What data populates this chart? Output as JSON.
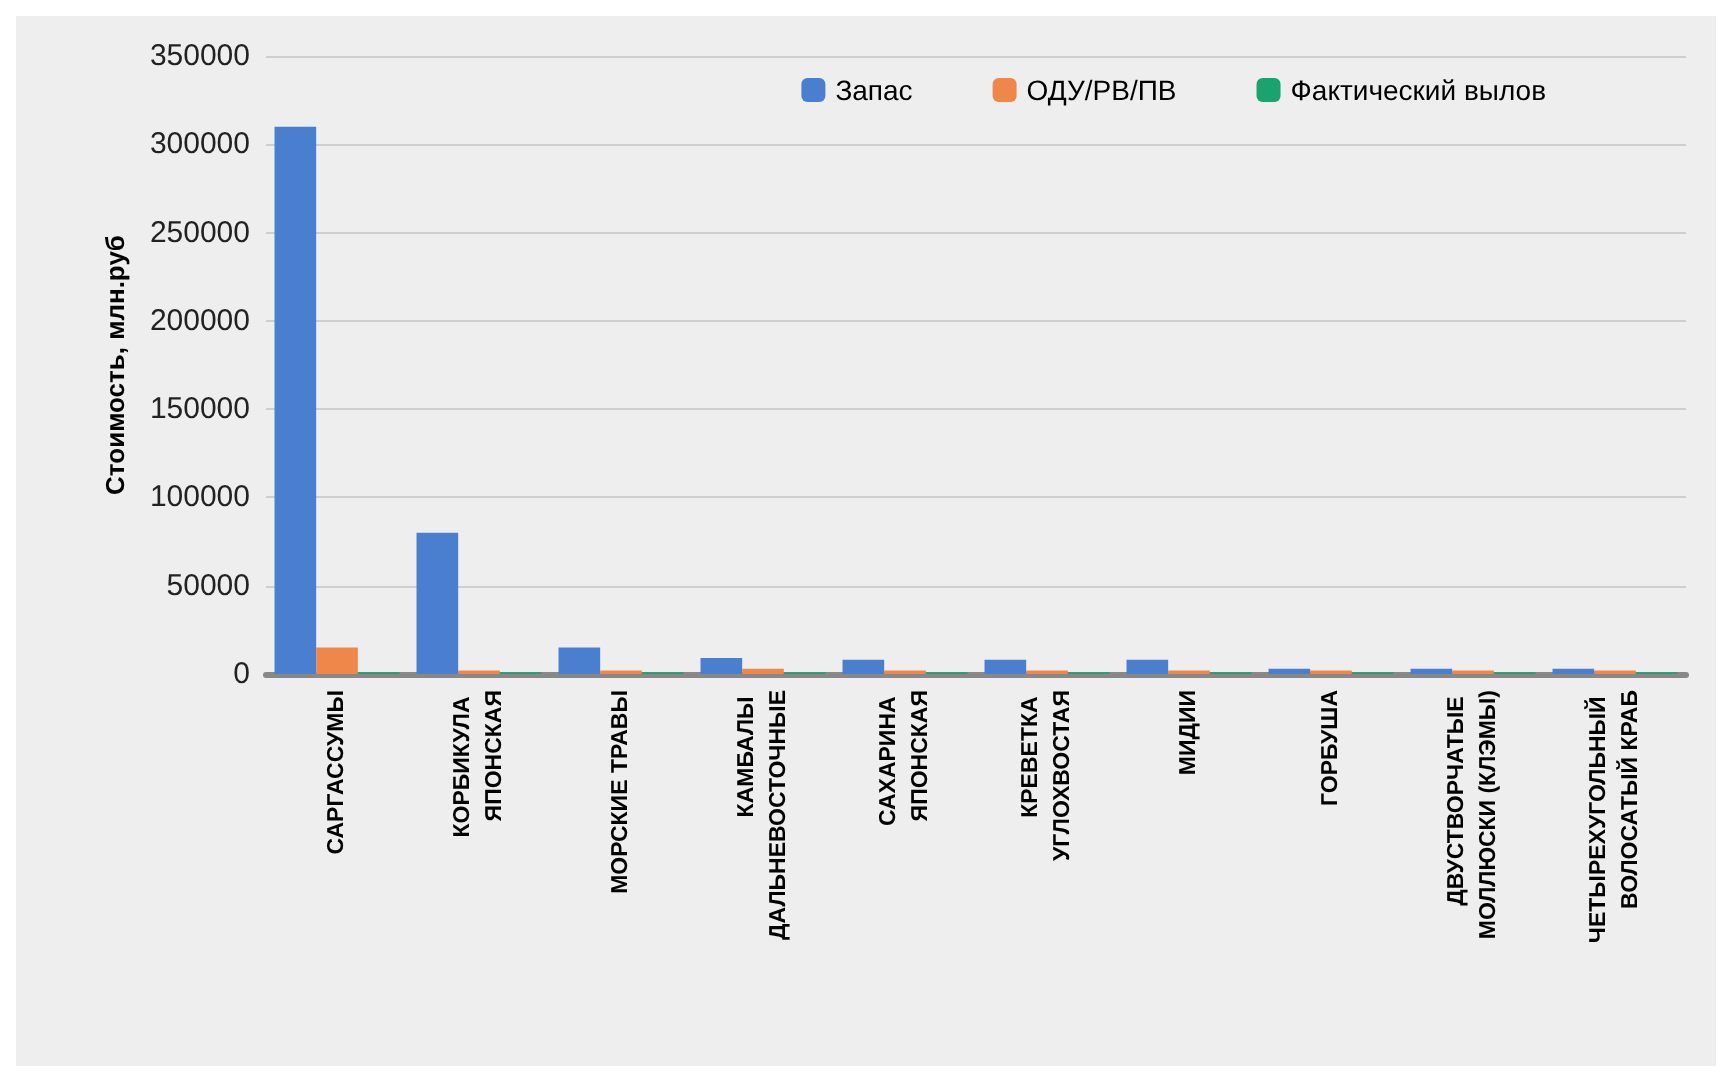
{
  "chart_data": {
    "type": "bar",
    "ylabel": "Стоимость, млн.руб",
    "categories": [
      "САРГАССУМЫ",
      "КОРБИКУЛА ЯПОНСКАЯ",
      "МОРСКИЕ ТРАВЫ",
      "КАМБАЛЫ ДАЛЬНЕВОСТОЧНЫЕ",
      "САХАРИНА ЯПОНСКАЯ",
      "КРЕВЕТКА УГЛОХВОСТАЯ",
      "МИДИИ",
      "ГОРБУША",
      "ДВУСТВОРЧАТЫЕ МОЛЛЮСКИ (КЛЭМЫ)",
      "ЧЕТЫРЕХУГОЛЬНЫЙ ВОЛОСАТЫЙ КРАБ"
    ],
    "series": [
      {
        "name": "Запас",
        "color": "#4a7fcf",
        "values": [
          310000,
          80000,
          15000,
          9000,
          8000,
          8000,
          8000,
          3000,
          3000,
          3000
        ]
      },
      {
        "name": "ОДУ/РВ/ПВ",
        "color": "#f0874a",
        "values": [
          15000,
          2000,
          2000,
          3000,
          2000,
          2000,
          2000,
          2000,
          2000,
          2000
        ]
      },
      {
        "name": "Фактический вылов",
        "color": "#1aa36f",
        "values": [
          1000,
          1000,
          1000,
          1000,
          1000,
          1000,
          1000,
          1000,
          1000,
          1000
        ]
      }
    ],
    "ylim": [
      0,
      350000
    ],
    "yticks": [
      0,
      50000,
      100000,
      150000,
      200000,
      250000,
      300000,
      350000
    ],
    "grid": "y",
    "legend": "top right"
  }
}
